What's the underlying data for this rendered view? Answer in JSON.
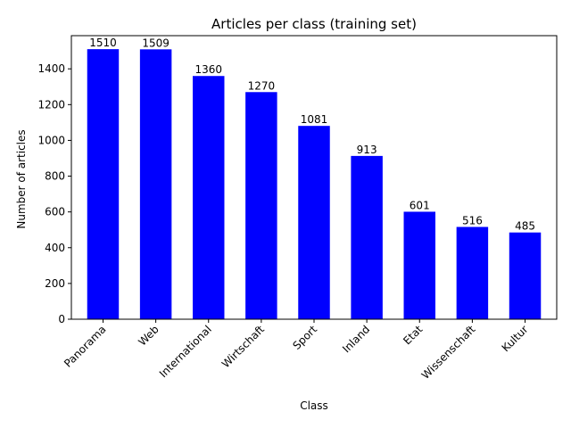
{
  "chart_data": {
    "type": "bar",
    "title": "Articles per class (training set)",
    "xlabel": "Class",
    "ylabel": "Number of articles",
    "categories": [
      "Panorama",
      "Web",
      "International",
      "Wirtschaft",
      "Sport",
      "Inland",
      "Etat",
      "Wissenschaft",
      "Kultur"
    ],
    "values": [
      1510,
      1509,
      1360,
      1270,
      1081,
      913,
      601,
      516,
      485
    ],
    "ylim": [
      0,
      1585.5
    ],
    "yticks": [
      0,
      200,
      400,
      600,
      800,
      1000,
      1200,
      1400
    ],
    "bar_color": "#0000ff",
    "grid": false,
    "legend": "none",
    "x_tick_rotation": 45
  }
}
